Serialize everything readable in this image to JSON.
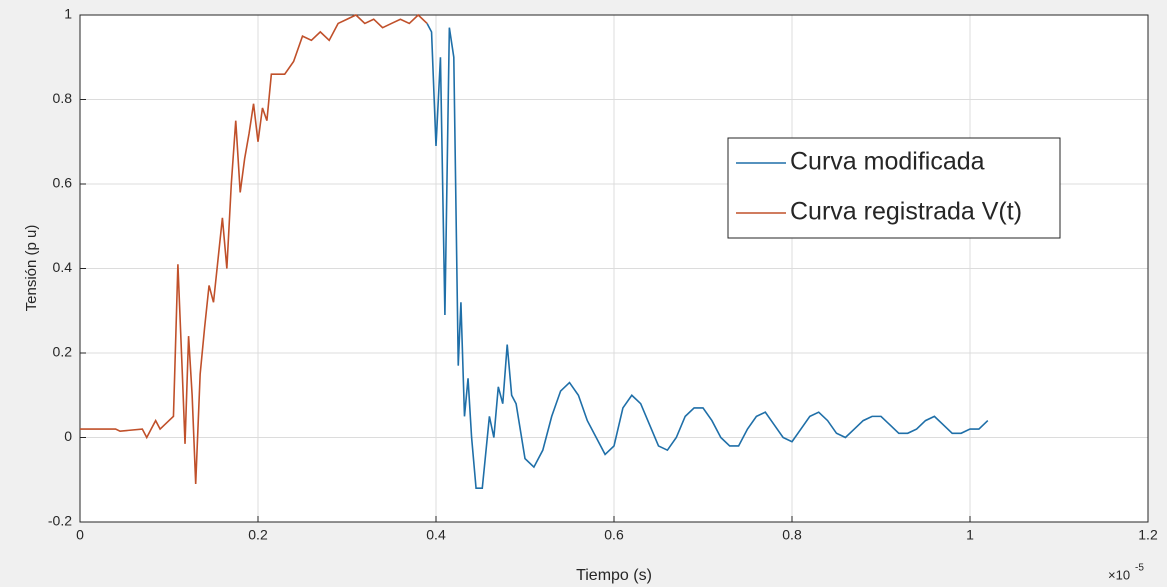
{
  "chart_data": {
    "type": "line",
    "xlabel": "Tiempo   (s)",
    "ylabel": "Tensión  (p u)",
    "x_exponent": {
      "base": "×10",
      "power": "-5"
    },
    "xlim": [
      0,
      1.2
    ],
    "xticks": [
      0,
      0.2,
      0.4,
      0.6,
      0.8,
      1,
      1.2
    ],
    "ylim": [
      -0.2,
      1
    ],
    "yticks": [
      -0.2,
      0,
      0.2,
      0.4,
      0.6,
      0.8,
      1
    ],
    "grid": true,
    "legend": "east",
    "series": [
      {
        "name": "Curva modificada",
        "color": "#1f6fa8",
        "x": [
          0.39,
          0.395,
          0.4,
          0.405,
          0.41,
          0.415,
          0.42,
          0.425,
          0.428,
          0.432,
          0.436,
          0.44,
          0.445,
          0.452,
          0.46,
          0.465,
          0.47,
          0.475,
          0.48,
          0.485,
          0.49,
          0.5,
          0.51,
          0.52,
          0.53,
          0.54,
          0.55,
          0.56,
          0.57,
          0.58,
          0.59,
          0.6,
          0.61,
          0.62,
          0.63,
          0.64,
          0.65,
          0.66,
          0.67,
          0.68,
          0.69,
          0.7,
          0.71,
          0.72,
          0.73,
          0.74,
          0.75,
          0.76,
          0.77,
          0.78,
          0.79,
          0.8,
          0.81,
          0.82,
          0.83,
          0.84,
          0.85,
          0.86,
          0.87,
          0.88,
          0.89,
          0.9,
          0.91,
          0.92,
          0.93,
          0.94,
          0.95,
          0.96,
          0.97,
          0.98,
          0.99,
          1.0,
          1.01,
          1.02
        ],
        "values": [
          0.98,
          0.96,
          0.69,
          0.9,
          0.29,
          0.97,
          0.9,
          0.17,
          0.32,
          0.05,
          0.14,
          0.0,
          -0.12,
          -0.12,
          0.05,
          0.0,
          0.12,
          0.08,
          0.22,
          0.1,
          0.08,
          -0.05,
          -0.07,
          -0.03,
          0.05,
          0.11,
          0.13,
          0.1,
          0.04,
          0.0,
          -0.04,
          -0.02,
          0.07,
          0.1,
          0.08,
          0.03,
          -0.02,
          -0.03,
          0.0,
          0.05,
          0.07,
          0.07,
          0.04,
          0.0,
          -0.02,
          -0.02,
          0.02,
          0.05,
          0.06,
          0.03,
          0.0,
          -0.01,
          0.02,
          0.05,
          0.06,
          0.04,
          0.01,
          0.0,
          0.02,
          0.04,
          0.05,
          0.05,
          0.03,
          0.01,
          0.01,
          0.02,
          0.04,
          0.05,
          0.03,
          0.01,
          0.01,
          0.02,
          0.02,
          0.04
        ]
      },
      {
        "name": "Curva registrada V(t)",
        "color": "#c0502a",
        "x": [
          0,
          0.04,
          0.045,
          0.07,
          0.075,
          0.08,
          0.085,
          0.09,
          0.1,
          0.105,
          0.11,
          0.115,
          0.118,
          0.122,
          0.126,
          0.13,
          0.135,
          0.14,
          0.145,
          0.15,
          0.155,
          0.16,
          0.165,
          0.17,
          0.175,
          0.18,
          0.185,
          0.19,
          0.195,
          0.2,
          0.205,
          0.21,
          0.215,
          0.23,
          0.24,
          0.25,
          0.26,
          0.27,
          0.28,
          0.29,
          0.3,
          0.31,
          0.32,
          0.33,
          0.34,
          0.35,
          0.36,
          0.37,
          0.38,
          0.39
        ],
        "values": [
          0.02,
          0.02,
          0.015,
          0.02,
          0,
          0.02,
          0.04,
          0.02,
          0.04,
          0.05,
          0.41,
          0.15,
          -0.015,
          0.24,
          0.1,
          -0.11,
          0.15,
          0.26,
          0.36,
          0.32,
          0.42,
          0.52,
          0.4,
          0.6,
          0.75,
          0.58,
          0.66,
          0.72,
          0.79,
          0.7,
          0.78,
          0.75,
          0.86,
          0.86,
          0.89,
          0.95,
          0.94,
          0.96,
          0.94,
          0.98,
          0.99,
          1.0,
          0.98,
          0.99,
          0.97,
          0.98,
          0.99,
          0.98,
          1.0,
          0.98
        ]
      }
    ]
  }
}
